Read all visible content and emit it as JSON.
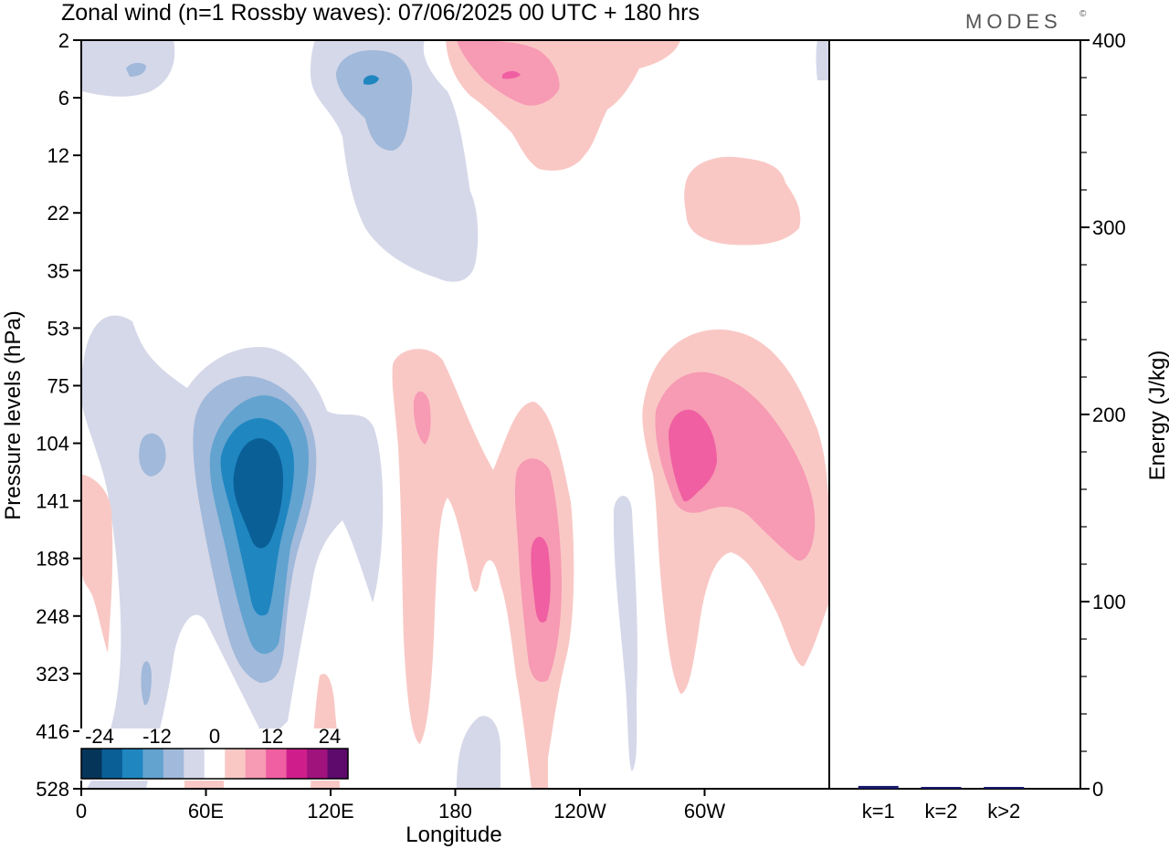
{
  "title": "Zonal wind (n=1 Rossby waves):  07/06/2025  00 UTC  + 180 hrs",
  "brand": "MODES",
  "brand_mark": "©",
  "colors": {
    "neg": [
      "#06355a",
      "#0b5f97",
      "#1f86c0",
      "#62a3d0",
      "#a1b9da",
      "#d5d8e9"
    ],
    "zero": "#ffffff",
    "pos": [
      "#f9c8c5",
      "#f79ab3",
      "#ef5fa1",
      "#cf1e8c",
      "#a0137d",
      "#5d0a6c"
    ],
    "bar": "#1a1a6e"
  },
  "chart_data": [
    {
      "type": "heatmap",
      "title": "Zonal wind (n=1 Rossby waves):  07/06/2025  00 UTC  + 180 hrs",
      "xlabel": "Longitude",
      "ylabel": "Pressure levels (hPa)",
      "x_ticks": [
        "0",
        "60E",
        "120E",
        "180",
        "120W",
        "60W"
      ],
      "x_tick_degrees": [
        0,
        60,
        120,
        180,
        240,
        300
      ],
      "xlim": [
        0,
        360
      ],
      "y_ticks": [
        "2",
        "6",
        "12",
        "22",
        "35",
        "53",
        "75",
        "104",
        "141",
        "188",
        "248",
        "323",
        "416",
        "528"
      ],
      "y_axis": "inverted pressure, levels evenly spaced",
      "colorbar": {
        "levels": [
          -24,
          -12,
          0,
          12,
          24
        ],
        "n_bins": 12
      },
      "features": [
        {
          "sign": "negative",
          "max_abs": 22,
          "lon": 86,
          "level_hPa": 141
        },
        {
          "sign": "negative",
          "max_abs": 8,
          "lon": 140,
          "level_hPa": 5
        },
        {
          "sign": "positive",
          "max_abs": 12,
          "lon": 207,
          "level_hPa": 188
        },
        {
          "sign": "positive",
          "max_abs": 12,
          "lon": 290,
          "level_hPa": 104
        },
        {
          "sign": "positive",
          "max_abs": 8,
          "lon": 207,
          "level_hPa": 4
        },
        {
          "sign": "positive",
          "max_abs": 4,
          "lon": 330,
          "level_hPa": 22
        }
      ]
    },
    {
      "type": "bar",
      "categories": [
        "k=1",
        "k=2",
        "k>2"
      ],
      "values": [
        1.5,
        0.5,
        0.5
      ],
      "ylabel": "Energy (J/kg)",
      "ylim": [
        0,
        400
      ],
      "y_ticks": [
        0,
        100,
        200,
        300,
        400
      ]
    }
  ]
}
